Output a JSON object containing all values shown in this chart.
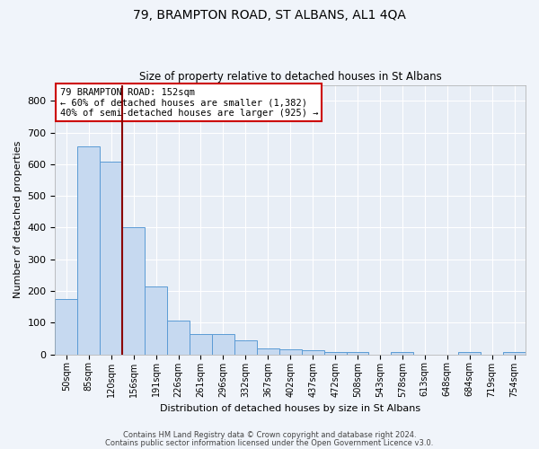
{
  "title": "79, BRAMPTON ROAD, ST ALBANS, AL1 4QA",
  "subtitle": "Size of property relative to detached houses in St Albans",
  "xlabel": "Distribution of detached houses by size in St Albans",
  "ylabel": "Number of detached properties",
  "bar_values": [
    175,
    655,
    608,
    400,
    215,
    107,
    64,
    64,
    45,
    18,
    17,
    14,
    8,
    8,
    0,
    8,
    0,
    0,
    8,
    0,
    8
  ],
  "bar_labels": [
    "50sqm",
    "85sqm",
    "120sqm",
    "156sqm",
    "191sqm",
    "226sqm",
    "261sqm",
    "296sqm",
    "332sqm",
    "367sqm",
    "402sqm",
    "437sqm",
    "472sqm",
    "508sqm",
    "543sqm",
    "578sqm",
    "613sqm",
    "648sqm",
    "684sqm",
    "719sqm",
    "754sqm"
  ],
  "bar_color": "#c6d9f0",
  "bar_edge_color": "#5b9bd5",
  "vline_x": 2.5,
  "vline_color": "#8b0000",
  "annotation_title": "79 BRAMPTON ROAD: 152sqm",
  "annotation_line1": "← 60% of detached houses are smaller (1,382)",
  "annotation_line2": "40% of semi-detached houses are larger (925) →",
  "annotation_box_color": "#ffffff",
  "annotation_box_edge": "#cc0000",
  "ylim": [
    0,
    850
  ],
  "yticks": [
    0,
    100,
    200,
    300,
    400,
    500,
    600,
    700,
    800
  ],
  "footer1": "Contains HM Land Registry data © Crown copyright and database right 2024.",
  "footer2": "Contains public sector information licensed under the Open Government Licence v3.0.",
  "bg_color": "#f0f4fa",
  "plot_bg_color": "#e8eef6"
}
